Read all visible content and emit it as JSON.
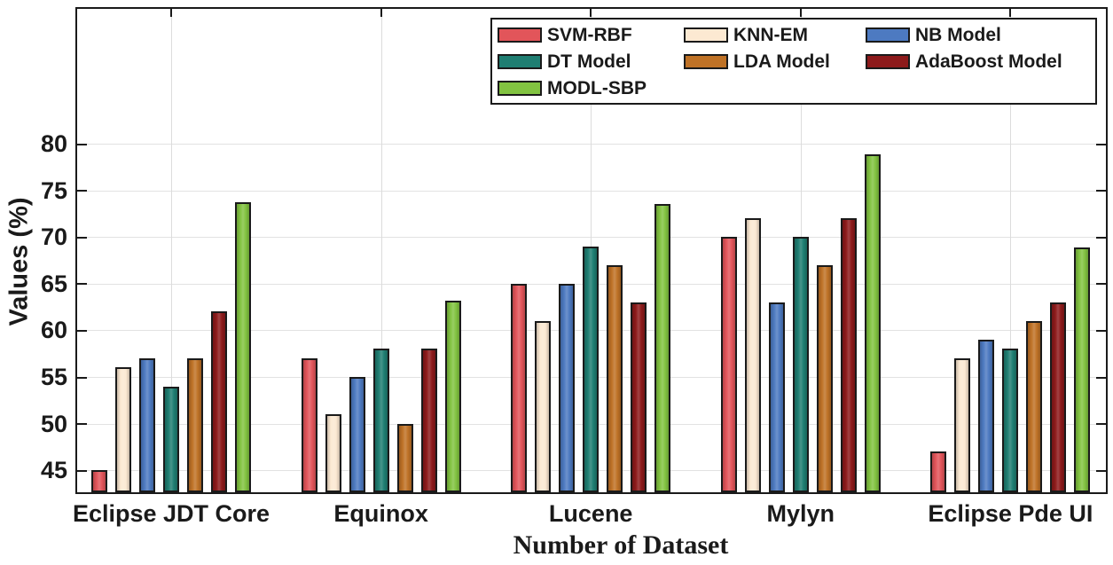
{
  "figure": {
    "background": "#ffffff",
    "axis_color": "#1a1a1a",
    "grid_color": "#e2e2e2"
  },
  "chart_data": {
    "type": "bar",
    "title": "",
    "xlabel": "Number of Dataset",
    "ylabel": "Values (%)",
    "categories": [
      "Eclipse JDT Core",
      "Equinox",
      "Lucene",
      "Mylyn",
      "Eclipse Pde UI"
    ],
    "series": [
      {
        "name": "SVM-RBF",
        "color": "#e2555a",
        "values": [
          45,
          57,
          65,
          70,
          47
        ]
      },
      {
        "name": "KNN-EM",
        "color": "#fce9d2",
        "values": [
          56,
          51,
          61,
          72,
          57
        ]
      },
      {
        "name": "NB Model",
        "color": "#4d7ac1",
        "values": [
          57,
          55,
          65,
          63,
          59
        ]
      },
      {
        "name": "DT Model",
        "color": "#1f7e72",
        "values": [
          54,
          58,
          69,
          70,
          58
        ]
      },
      {
        "name": "LDA Model",
        "color": "#bf7226",
        "values": [
          57,
          50,
          67,
          67,
          61
        ]
      },
      {
        "name": "AdaBoost Model",
        "color": "#8d1a1b",
        "values": [
          62,
          58,
          63,
          72,
          63
        ]
      },
      {
        "name": "MODL-SBP",
        "color": "#82c341",
        "values": [
          73.7,
          63.2,
          73.5,
          78.9,
          68.9
        ]
      }
    ],
    "yticks": [
      45,
      50,
      55,
      60,
      65,
      70,
      75,
      80
    ],
    "ylim": [
      42.3,
      94.5
    ],
    "grid": true,
    "legend_position": "top-right-inside",
    "legend_columns": 3
  }
}
